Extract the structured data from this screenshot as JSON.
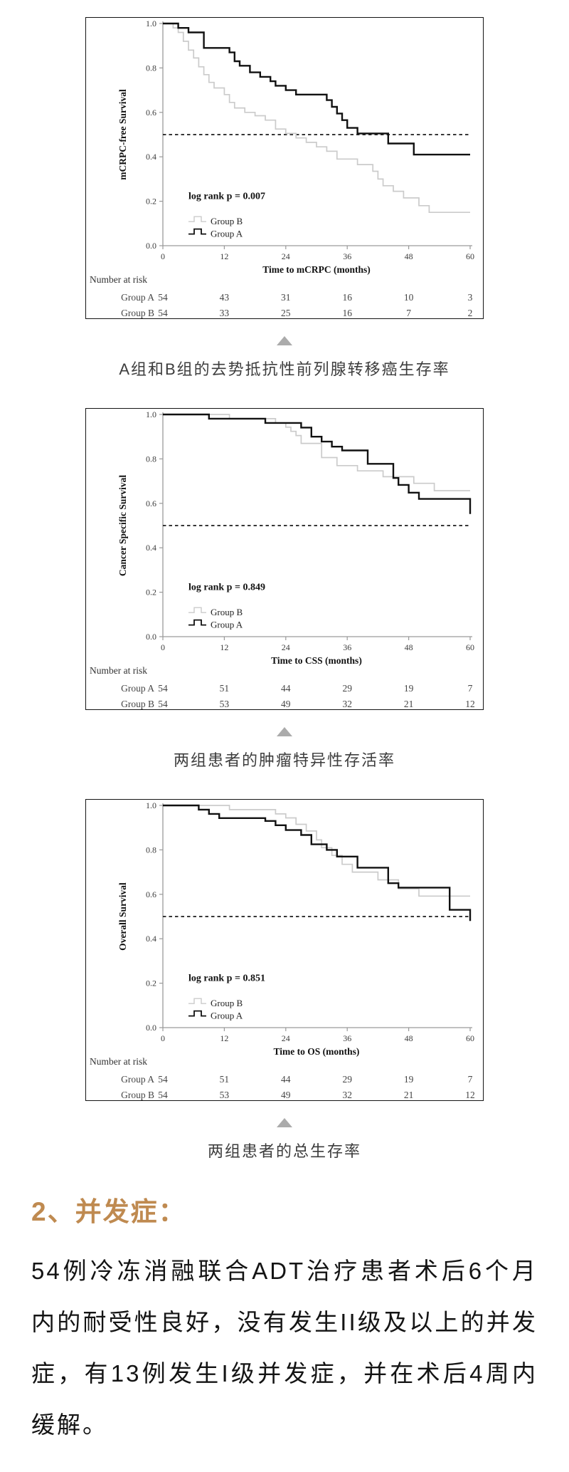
{
  "colors": {
    "group_a": "#111111",
    "group_b": "#cbcbcb",
    "axis": "#9a9a9a",
    "reference_line": "#1c1c1c",
    "triangle": "#ababab",
    "heading": "#bf8a50",
    "caption_text": "#3d3d3d",
    "body_text": "#141414"
  },
  "chart_data": [
    {
      "type": "line",
      "subtype": "kaplan-meier-step",
      "ylabel": "mCRPC-free Survival",
      "xlabel": "Time to mCRPC (months)",
      "xlim": [
        0,
        60
      ],
      "ylim": [
        0.0,
        1.0
      ],
      "x_ticks": [
        0,
        12,
        24,
        36,
        48,
        60
      ],
      "y_tick_labels": [
        "0.0",
        "0.2",
        "0.4",
        "0.6",
        "0.8",
        "1.0"
      ],
      "annotation": "log rank p = 0.007",
      "reference_line_y": 0.5,
      "legend": [
        "Group B",
        "Group A"
      ],
      "series": [
        {
          "name": "Group A",
          "color": "#111111",
          "steps": [
            [
              0,
              1.0
            ],
            [
              3,
              0.98
            ],
            [
              5,
              0.96
            ],
            [
              8,
              0.89
            ],
            [
              13,
              0.87
            ],
            [
              14,
              0.83
            ],
            [
              15,
              0.81
            ],
            [
              17,
              0.78
            ],
            [
              19,
              0.76
            ],
            [
              21,
              0.74
            ],
            [
              22,
              0.72
            ],
            [
              24,
              0.7
            ],
            [
              26,
              0.68
            ],
            [
              32,
              0.655
            ],
            [
              33,
              0.625
            ],
            [
              34,
              0.595
            ],
            [
              35,
              0.565
            ],
            [
              36,
              0.53
            ],
            [
              38,
              0.505
            ],
            [
              44,
              0.46
            ],
            [
              49,
              0.41
            ],
            [
              60,
              0.41
            ]
          ]
        },
        {
          "name": "Group B",
          "color": "#cbcbcb",
          "steps": [
            [
              0,
              1.0
            ],
            [
              2,
              0.98
            ],
            [
              3,
              0.96
            ],
            [
              4,
              0.92
            ],
            [
              5,
              0.88
            ],
            [
              6,
              0.845
            ],
            [
              7,
              0.805
            ],
            [
              8,
              0.77
            ],
            [
              9,
              0.735
            ],
            [
              10,
              0.71
            ],
            [
              12,
              0.68
            ],
            [
              13,
              0.645
            ],
            [
              14,
              0.62
            ],
            [
              16,
              0.6
            ],
            [
              18,
              0.585
            ],
            [
              20,
              0.565
            ],
            [
              22,
              0.525
            ],
            [
              24,
              0.505
            ],
            [
              26,
              0.485
            ],
            [
              28,
              0.465
            ],
            [
              30,
              0.445
            ],
            [
              32,
              0.425
            ],
            [
              34,
              0.39
            ],
            [
              38,
              0.365
            ],
            [
              41,
              0.335
            ],
            [
              42,
              0.3
            ],
            [
              43,
              0.27
            ],
            [
              45,
              0.245
            ],
            [
              47,
              0.215
            ],
            [
              50,
              0.18
            ],
            [
              52,
              0.15
            ],
            [
              60,
              0.15
            ]
          ]
        }
      ],
      "number_at_risk_label": "Number at risk",
      "risk_rows": [
        {
          "label": "Group A",
          "values": [
            54,
            43,
            31,
            16,
            10,
            3
          ]
        },
        {
          "label": "Group B",
          "values": [
            54,
            33,
            25,
            16,
            7,
            2
          ]
        }
      ],
      "caption": "A组和B组的去势抵抗性前列腺转移癌生存率"
    },
    {
      "type": "line",
      "subtype": "kaplan-meier-step",
      "ylabel": "Cancer Specific Survival",
      "xlabel": "Time to CSS (months)",
      "xlim": [
        0,
        60
      ],
      "ylim": [
        0.0,
        1.0
      ],
      "x_ticks": [
        0,
        12,
        24,
        36,
        48,
        60
      ],
      "y_tick_labels": [
        "0.0",
        "0.2",
        "0.4",
        "0.6",
        "0.8",
        "1.0"
      ],
      "annotation": "log rank p = 0.849",
      "reference_line_y": 0.5,
      "legend": [
        "Group B",
        "Group A"
      ],
      "series": [
        {
          "name": "Group A",
          "color": "#111111",
          "steps": [
            [
              0,
              1.0
            ],
            [
              9,
              0.981
            ],
            [
              20,
              0.962
            ],
            [
              27,
              0.941
            ],
            [
              29,
              0.9
            ],
            [
              31,
              0.878
            ],
            [
              33,
              0.855
            ],
            [
              35,
              0.838
            ],
            [
              40,
              0.778
            ],
            [
              45,
              0.714
            ],
            [
              46,
              0.683
            ],
            [
              48,
              0.648
            ],
            [
              50,
              0.62
            ],
            [
              60,
              0.552
            ]
          ]
        },
        {
          "name": "Group B",
          "color": "#cbcbcb",
          "steps": [
            [
              0,
              1.0
            ],
            [
              13,
              0.981
            ],
            [
              22,
              0.962
            ],
            [
              24,
              0.943
            ],
            [
              25,
              0.924
            ],
            [
              26,
              0.905
            ],
            [
              27,
              0.87
            ],
            [
              31,
              0.806
            ],
            [
              34,
              0.77
            ],
            [
              38,
              0.746
            ],
            [
              43,
              0.72
            ],
            [
              49,
              0.69
            ],
            [
              53,
              0.657
            ],
            [
              60,
              0.657
            ]
          ]
        }
      ],
      "number_at_risk_label": "Number at risk",
      "risk_rows": [
        {
          "label": "Group A",
          "values": [
            54,
            51,
            44,
            29,
            19,
            7
          ]
        },
        {
          "label": "Group B",
          "values": [
            54,
            53,
            49,
            32,
            21,
            12
          ]
        }
      ],
      "caption": "两组患者的肿瘤特异性存活率"
    },
    {
      "type": "line",
      "subtype": "kaplan-meier-step",
      "ylabel": "Overall Survival",
      "xlabel": "Time to OS (months)",
      "xlim": [
        0,
        60
      ],
      "ylim": [
        0.0,
        1.0
      ],
      "x_ticks": [
        0,
        12,
        24,
        36,
        48,
        60
      ],
      "y_tick_labels": [
        "0.0",
        "0.2",
        "0.4",
        "0.6",
        "0.8",
        "1.0"
      ],
      "annotation": "log rank p = 0.851",
      "reference_line_y": 0.5,
      "legend": [
        "Group B",
        "Group A"
      ],
      "series": [
        {
          "name": "Group A",
          "color": "#111111",
          "steps": [
            [
              0,
              1.0
            ],
            [
              7,
              0.981
            ],
            [
              9,
              0.962
            ],
            [
              11,
              0.943
            ],
            [
              20,
              0.93
            ],
            [
              22,
              0.911
            ],
            [
              24,
              0.889
            ],
            [
              27,
              0.867
            ],
            [
              29,
              0.825
            ],
            [
              32,
              0.8
            ],
            [
              34,
              0.77
            ],
            [
              38,
              0.72
            ],
            [
              44,
              0.65
            ],
            [
              46,
              0.63
            ],
            [
              56,
              0.53
            ],
            [
              60,
              0.48
            ]
          ]
        },
        {
          "name": "Group B",
          "color": "#cbcbcb",
          "steps": [
            [
              0,
              1.0
            ],
            [
              13,
              0.981
            ],
            [
              22,
              0.962
            ],
            [
              24,
              0.944
            ],
            [
              26,
              0.915
            ],
            [
              28,
              0.885
            ],
            [
              30,
              0.845
            ],
            [
              31,
              0.81
            ],
            [
              33,
              0.775
            ],
            [
              35,
              0.735
            ],
            [
              37,
              0.7
            ],
            [
              42,
              0.665
            ],
            [
              46,
              0.625
            ],
            [
              50,
              0.592
            ],
            [
              60,
              0.592
            ]
          ]
        }
      ],
      "number_at_risk_label": "Number at risk",
      "risk_rows": [
        {
          "label": "Group A",
          "values": [
            54,
            51,
            44,
            29,
            19,
            7
          ]
        },
        {
          "label": "Group B",
          "values": [
            54,
            53,
            49,
            32,
            21,
            12
          ]
        }
      ],
      "caption": "两组患者的总生存率"
    }
  ],
  "section": {
    "heading": "2、并发症：",
    "paragraph": "54例冷冻消融联合ADT治疗患者术后6个月内的耐受性良好，没有发生II级及以上的并发症，有13例发生I级并发症，并在术后4周内缓解。"
  }
}
